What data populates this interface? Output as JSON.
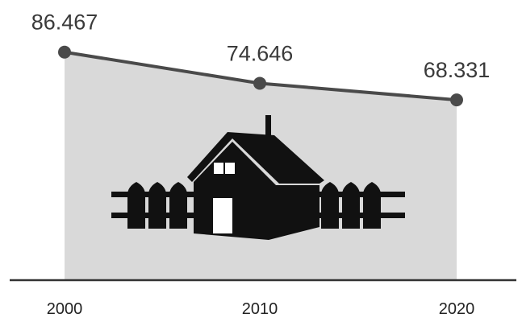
{
  "chart_data": {
    "type": "area",
    "categories": [
      "2000",
      "2010",
      "2020"
    ],
    "values": [
      86.467,
      74.646,
      68.331
    ],
    "data_labels": [
      "86.467",
      "74.646",
      "68.331"
    ],
    "title": "",
    "xlabel": "",
    "ylabel": "",
    "ylim": [
      0,
      95
    ],
    "grid": false,
    "legend": "none",
    "colors": {
      "area_fill": "#d9d9d9",
      "line": "#4a4a4a",
      "marker": "#4a4a4a",
      "axis": "#333333",
      "icon": "#111111"
    }
  },
  "illustration": {
    "icon": "house-with-fence-icon"
  }
}
